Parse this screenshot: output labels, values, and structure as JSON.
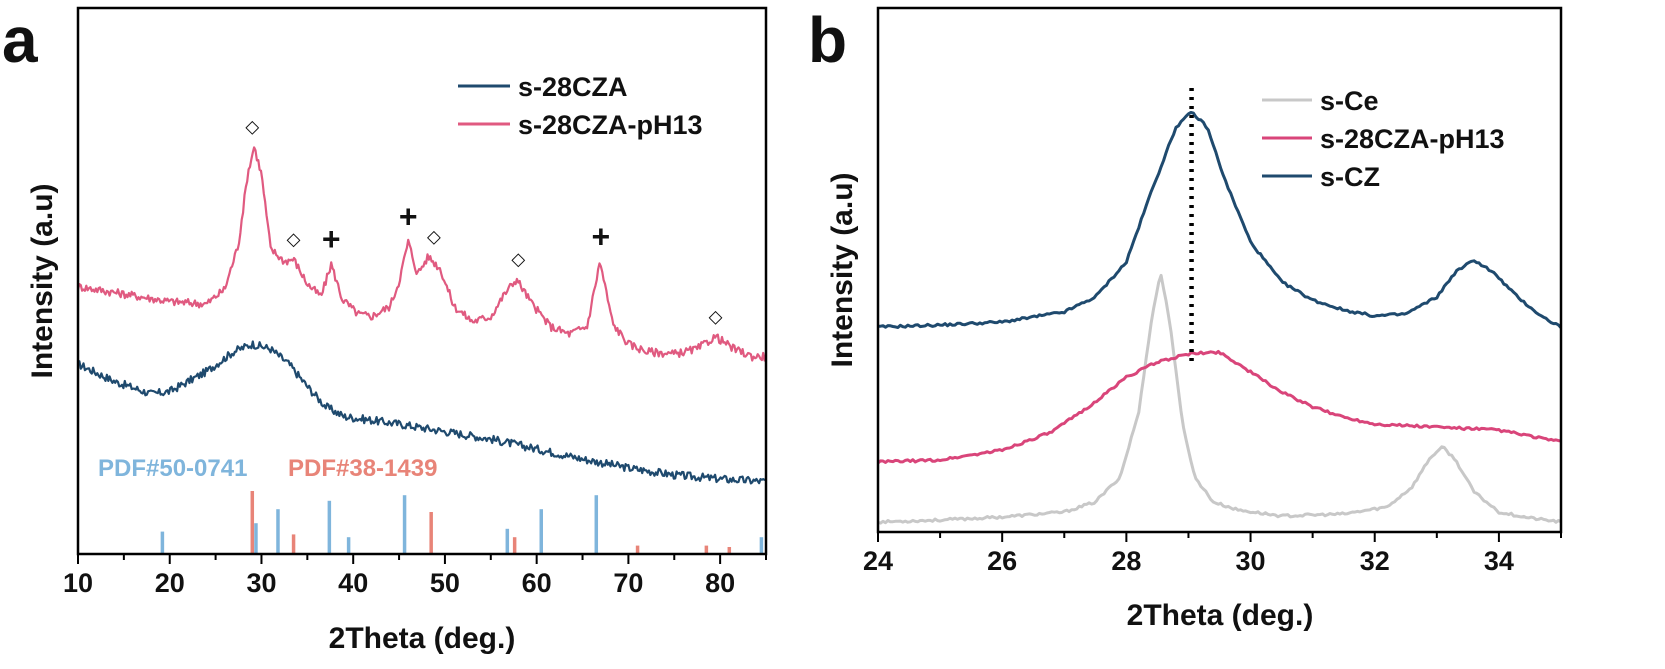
{
  "chart_data": [
    {
      "panel": "a",
      "type": "line",
      "xlabel": "2Theta (deg.)",
      "ylabel": "Intensity (a.u)",
      "xlim": [
        10,
        85
      ],
      "xticks": [
        10,
        20,
        30,
        40,
        50,
        60,
        70,
        80
      ],
      "legend_position": "top-right",
      "series": [
        {
          "name": "s-28CZA",
          "color": "#1f4a6e",
          "x": [
            10,
            14,
            18,
            20,
            24,
            27,
            29,
            31,
            33,
            35,
            37,
            39,
            41,
            45,
            50,
            55,
            60,
            65,
            70,
            75,
            80,
            85
          ],
          "y": [
            2.8,
            2.45,
            2.2,
            2.25,
            2.65,
            3.05,
            3.2,
            3.1,
            2.8,
            2.35,
            1.95,
            1.75,
            1.7,
            1.6,
            1.45,
            1.3,
            1.1,
            0.9,
            0.72,
            0.58,
            0.5,
            0.45
          ]
        },
        {
          "name": "s-28CZA-pH13",
          "color": "#e05a80",
          "x": [
            10,
            15,
            20,
            24,
            26,
            27.5,
            28.5,
            29.2,
            30,
            31,
            32.5,
            33.5,
            35,
            36.5,
            37.6,
            38.8,
            40.5,
            42,
            44,
            45,
            46,
            47,
            48.2,
            49.5,
            51,
            53,
            55,
            56.5,
            57.8,
            59.5,
            61.5,
            63.5,
            65.5,
            66.9,
            68.3,
            70,
            72,
            75,
            77.5,
            79.5,
            81.5,
            83.5,
            85
          ],
          "y": [
            4.35,
            4.2,
            4.05,
            4.0,
            4.3,
            5.2,
            6.6,
            7.15,
            6.6,
            5.1,
            4.85,
            4.9,
            4.4,
            4.15,
            4.8,
            4.1,
            3.8,
            3.75,
            3.95,
            4.45,
            5.25,
            4.6,
            4.95,
            4.7,
            3.95,
            3.65,
            3.75,
            4.2,
            4.5,
            4.0,
            3.55,
            3.4,
            3.55,
            4.85,
            3.6,
            3.2,
            3.05,
            3.0,
            3.1,
            3.35,
            3.1,
            2.95,
            2.95
          ]
        }
      ],
      "peak_markers": [
        {
          "x": 29.0,
          "y": 7.15,
          "symbol": "◇"
        },
        {
          "x": 33.5,
          "y": 4.9,
          "symbol": "◇"
        },
        {
          "x": 37.6,
          "y": 4.8,
          "symbol": "+"
        },
        {
          "x": 46.0,
          "y": 5.25,
          "symbol": "+"
        },
        {
          "x": 48.8,
          "y": 4.95,
          "symbol": "◇"
        },
        {
          "x": 58.0,
          "y": 4.5,
          "symbol": "◇"
        },
        {
          "x": 67.0,
          "y": 4.85,
          "symbol": "+"
        },
        {
          "x": 79.5,
          "y": 3.35,
          "symbol": "◇"
        }
      ],
      "references": [
        {
          "label": "PDF#50-0741",
          "color": "#7fb5dc",
          "positions": [
            19.2,
            29.4,
            31.8,
            37.4,
            39.5,
            45.6,
            56.8,
            60.5,
            66.5,
            84.5
          ],
          "heights": [
            0.16,
            0.22,
            0.32,
            0.38,
            0.12,
            0.42,
            0.18,
            0.32,
            0.42,
            0.12
          ]
        },
        {
          "label": "PDF#38-1439",
          "color": "#e88478",
          "positions": [
            29.0,
            33.5,
            48.5,
            57.6,
            71.0,
            78.5,
            81.0
          ],
          "heights": [
            0.45,
            0.14,
            0.3,
            0.12,
            0.06,
            0.06,
            0.05
          ]
        }
      ]
    },
    {
      "panel": "b",
      "type": "line",
      "xlabel": "2Theta (deg.)",
      "ylabel": "Intensity (a.u)",
      "xlim": [
        24,
        35
      ],
      "xticks": [
        24,
        26,
        28,
        30,
        32,
        34
      ],
      "legend_position": "top-right",
      "dashed_reference_x": 29.05,
      "series": [
        {
          "name": "s-Ce",
          "color": "#c8c8c8",
          "x": [
            24,
            25,
            26,
            27,
            27.5,
            27.9,
            28.2,
            28.4,
            28.55,
            28.7,
            28.9,
            29.1,
            29.4,
            29.8,
            30.5,
            31.5,
            32.2,
            32.6,
            32.9,
            33.1,
            33.3,
            33.6,
            34,
            34.5,
            35
          ],
          "y": [
            0.0,
            0.02,
            0.05,
            0.1,
            0.2,
            0.45,
            1.1,
            2.0,
            2.5,
            2.0,
            1.0,
            0.45,
            0.2,
            0.12,
            0.06,
            0.08,
            0.15,
            0.35,
            0.65,
            0.75,
            0.62,
            0.3,
            0.1,
            0.04,
            0.0
          ]
        },
        {
          "name": "s-28CZA-pH13",
          "color": "#d9457a",
          "x": [
            24,
            25,
            26,
            26.8,
            27.5,
            28,
            28.5,
            29,
            29.5,
            30,
            30.5,
            31,
            31.5,
            32,
            33,
            34,
            35
          ],
          "y": [
            0.6,
            0.62,
            0.72,
            0.9,
            1.2,
            1.45,
            1.6,
            1.68,
            1.7,
            1.5,
            1.3,
            1.15,
            1.05,
            0.98,
            0.95,
            0.92,
            0.8
          ]
        },
        {
          "name": "s-CZ",
          "color": "#1f4a6e",
          "x": [
            24,
            25,
            26,
            27,
            27.5,
            28,
            28.4,
            28.8,
            29.05,
            29.3,
            29.6,
            30,
            30.5,
            31,
            31.5,
            32,
            32.5,
            33,
            33.3,
            33.6,
            33.9,
            34.3,
            34.7,
            35
          ],
          "y": [
            1.95,
            1.97,
            2.0,
            2.1,
            2.25,
            2.6,
            3.3,
            3.95,
            4.1,
            3.95,
            3.4,
            2.8,
            2.4,
            2.22,
            2.12,
            2.06,
            2.08,
            2.25,
            2.5,
            2.62,
            2.5,
            2.25,
            2.05,
            1.95
          ]
        }
      ]
    }
  ],
  "panel_labels": {
    "a": "a",
    "b": "b"
  }
}
